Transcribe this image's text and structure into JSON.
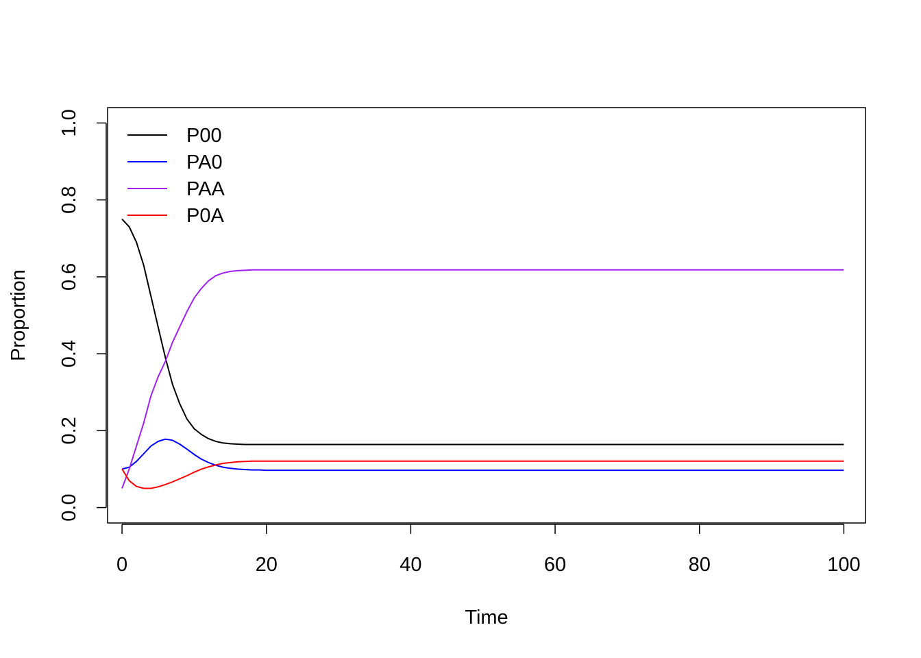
{
  "chart_data": {
    "type": "line",
    "title": "",
    "xlabel": "Time",
    "ylabel": "Proportion",
    "xlim": [
      -2,
      103
    ],
    "ylim": [
      -0.04,
      1.04
    ],
    "xticks": [
      0,
      20,
      40,
      60,
      80,
      100
    ],
    "yticks": [
      0.0,
      0.2,
      0.4,
      0.6,
      0.8,
      1.0
    ],
    "xtick_labels": [
      "0",
      "20",
      "40",
      "60",
      "80",
      "100"
    ],
    "ytick_labels": [
      "0.0",
      "0.2",
      "0.4",
      "0.6",
      "0.8",
      "1.0"
    ],
    "grid": false,
    "legend_position": "top-left",
    "x": [
      0,
      1,
      2,
      3,
      4,
      5,
      6,
      7,
      8,
      9,
      10,
      11,
      12,
      13,
      14,
      15,
      16,
      17,
      18,
      19,
      20,
      22,
      25,
      30,
      40,
      50,
      60,
      70,
      80,
      90,
      100
    ],
    "series": [
      {
        "name": "P00",
        "color": "#000000",
        "values": [
          0.75,
          0.73,
          0.69,
          0.63,
          0.55,
          0.47,
          0.39,
          0.32,
          0.27,
          0.23,
          0.205,
          0.19,
          0.179,
          0.172,
          0.168,
          0.166,
          0.165,
          0.164,
          0.164,
          0.164,
          0.164,
          0.164,
          0.164,
          0.164,
          0.164,
          0.164,
          0.164,
          0.164,
          0.164,
          0.164,
          0.164
        ]
      },
      {
        "name": "PA0",
        "color": "#0000ff",
        "values": [
          0.1,
          0.105,
          0.12,
          0.14,
          0.16,
          0.172,
          0.178,
          0.175,
          0.165,
          0.152,
          0.138,
          0.126,
          0.117,
          0.11,
          0.105,
          0.102,
          0.1,
          0.099,
          0.098,
          0.098,
          0.097,
          0.097,
          0.097,
          0.097,
          0.097,
          0.097,
          0.097,
          0.097,
          0.097,
          0.097,
          0.097
        ]
      },
      {
        "name": "PAA",
        "color": "#a020f0",
        "values": [
          0.05,
          0.1,
          0.16,
          0.22,
          0.29,
          0.34,
          0.38,
          0.43,
          0.47,
          0.51,
          0.545,
          0.57,
          0.59,
          0.603,
          0.61,
          0.614,
          0.616,
          0.617,
          0.618,
          0.618,
          0.618,
          0.618,
          0.618,
          0.618,
          0.618,
          0.618,
          0.618,
          0.618,
          0.618,
          0.618,
          0.618
        ]
      },
      {
        "name": "P0A",
        "color": "#ff0000",
        "values": [
          0.1,
          0.07,
          0.055,
          0.05,
          0.05,
          0.054,
          0.06,
          0.067,
          0.075,
          0.083,
          0.092,
          0.1,
          0.106,
          0.111,
          0.115,
          0.117,
          0.119,
          0.12,
          0.121,
          0.121,
          0.121,
          0.121,
          0.121,
          0.121,
          0.121,
          0.121,
          0.121,
          0.121,
          0.121,
          0.121,
          0.121
        ]
      }
    ]
  }
}
